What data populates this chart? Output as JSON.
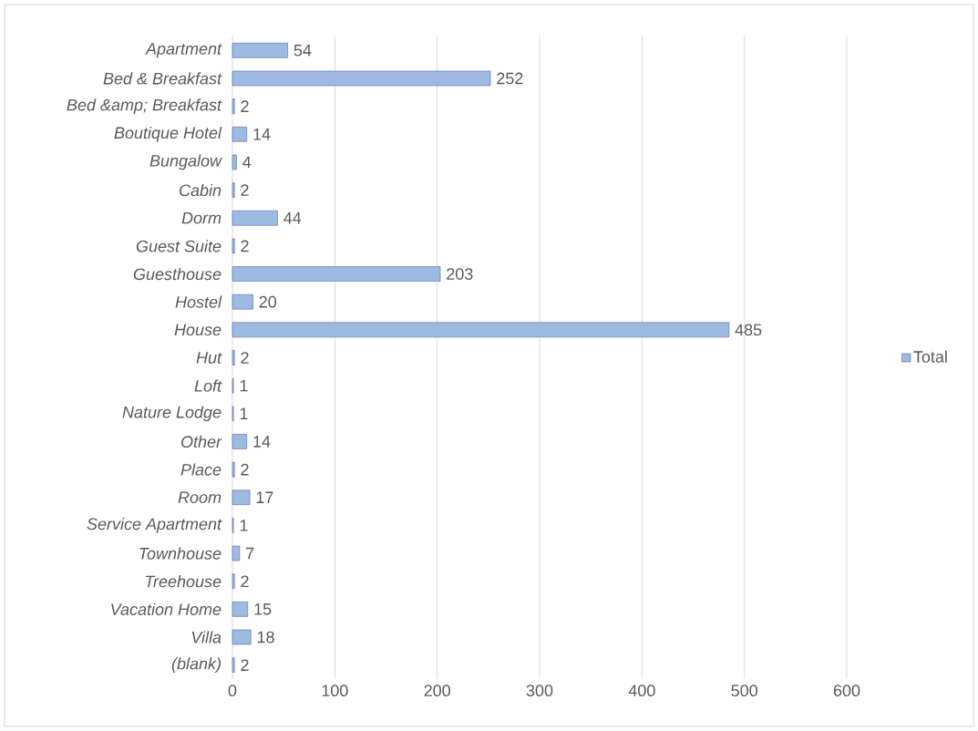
{
  "chart_data": {
    "type": "bar",
    "orientation": "horizontal",
    "categories": [
      "Apartment",
      "Bed & Breakfast",
      "Bed &amp; Breakfast",
      "Boutique Hotel",
      "Bungalow",
      "Cabin",
      "Dorm",
      "Guest Suite",
      "Guesthouse",
      "Hostel",
      "House",
      "Hut",
      "Loft",
      "Nature Lodge",
      "Other",
      "Place",
      "Room",
      "Service Apartment",
      "Townhouse",
      "Treehouse",
      "Vacation Home",
      "Villa",
      "(blank)"
    ],
    "series": [
      {
        "name": "Total",
        "color": "#9dbbe1",
        "values": [
          54,
          252,
          2,
          14,
          4,
          2,
          44,
          2,
          203,
          20,
          485,
          2,
          1,
          1,
          14,
          2,
          17,
          1,
          7,
          2,
          15,
          18,
          2
        ]
      }
    ],
    "xlim": [
      0,
      600
    ],
    "xticks": [
      0,
      100,
      200,
      300,
      400,
      500,
      600
    ],
    "grid": "x",
    "legend": "right",
    "data_labels": true
  }
}
